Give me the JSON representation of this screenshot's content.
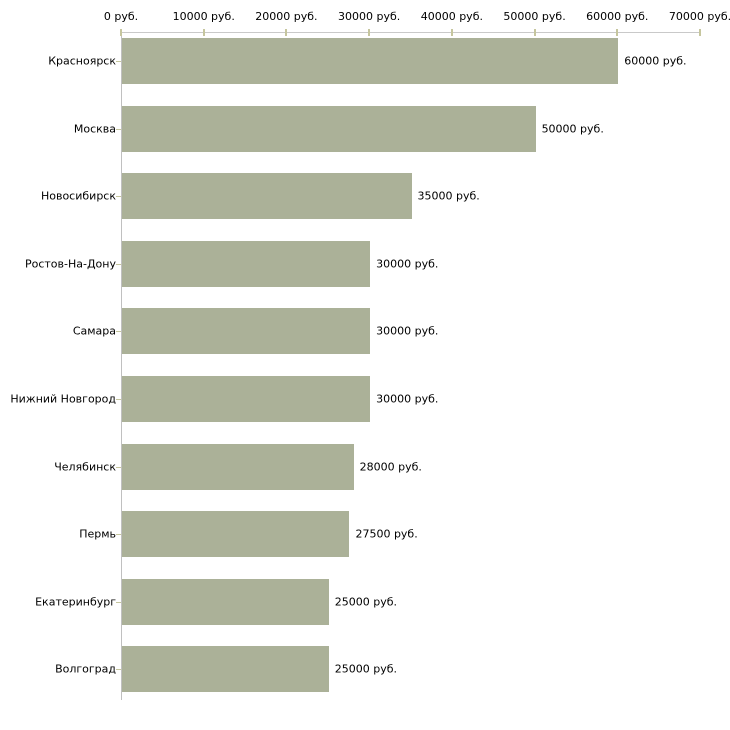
{
  "chart_data": {
    "type": "bar",
    "orientation": "horizontal",
    "categories": [
      "Красноярск",
      "Москва",
      "Новосибирск",
      "Ростов-На-Дону",
      "Самара",
      "Нижний Новгород",
      "Челябинск",
      "Пермь",
      "Екатеринбург",
      "Волгоград"
    ],
    "values": [
      60000,
      50000,
      35000,
      30000,
      30000,
      30000,
      28000,
      27500,
      25000,
      25000
    ],
    "value_labels": [
      "60000 руб.",
      "50000 руб.",
      "35000 руб.",
      "30000 руб.",
      "30000 руб.",
      "30000 руб.",
      "28000 руб.",
      "27500 руб.",
      "25000 руб.",
      "25000 руб."
    ],
    "x_axis": {
      "position": "top",
      "min": 0,
      "max": 70000,
      "ticks": [
        0,
        10000,
        20000,
        30000,
        40000,
        50000,
        60000,
        70000
      ],
      "tick_labels": [
        "0 руб.",
        "10000 руб.",
        "20000 руб.",
        "30000 руб.",
        "40000 руб.",
        "50000 руб.",
        "60000 руб.",
        "70000 руб."
      ]
    },
    "grid": false,
    "legend": false,
    "colors": {
      "bar": "#abb198",
      "axis_line": "#c6c6c6",
      "tick": "#c6c69e",
      "text": "#000000",
      "background": "#ffffff"
    }
  }
}
